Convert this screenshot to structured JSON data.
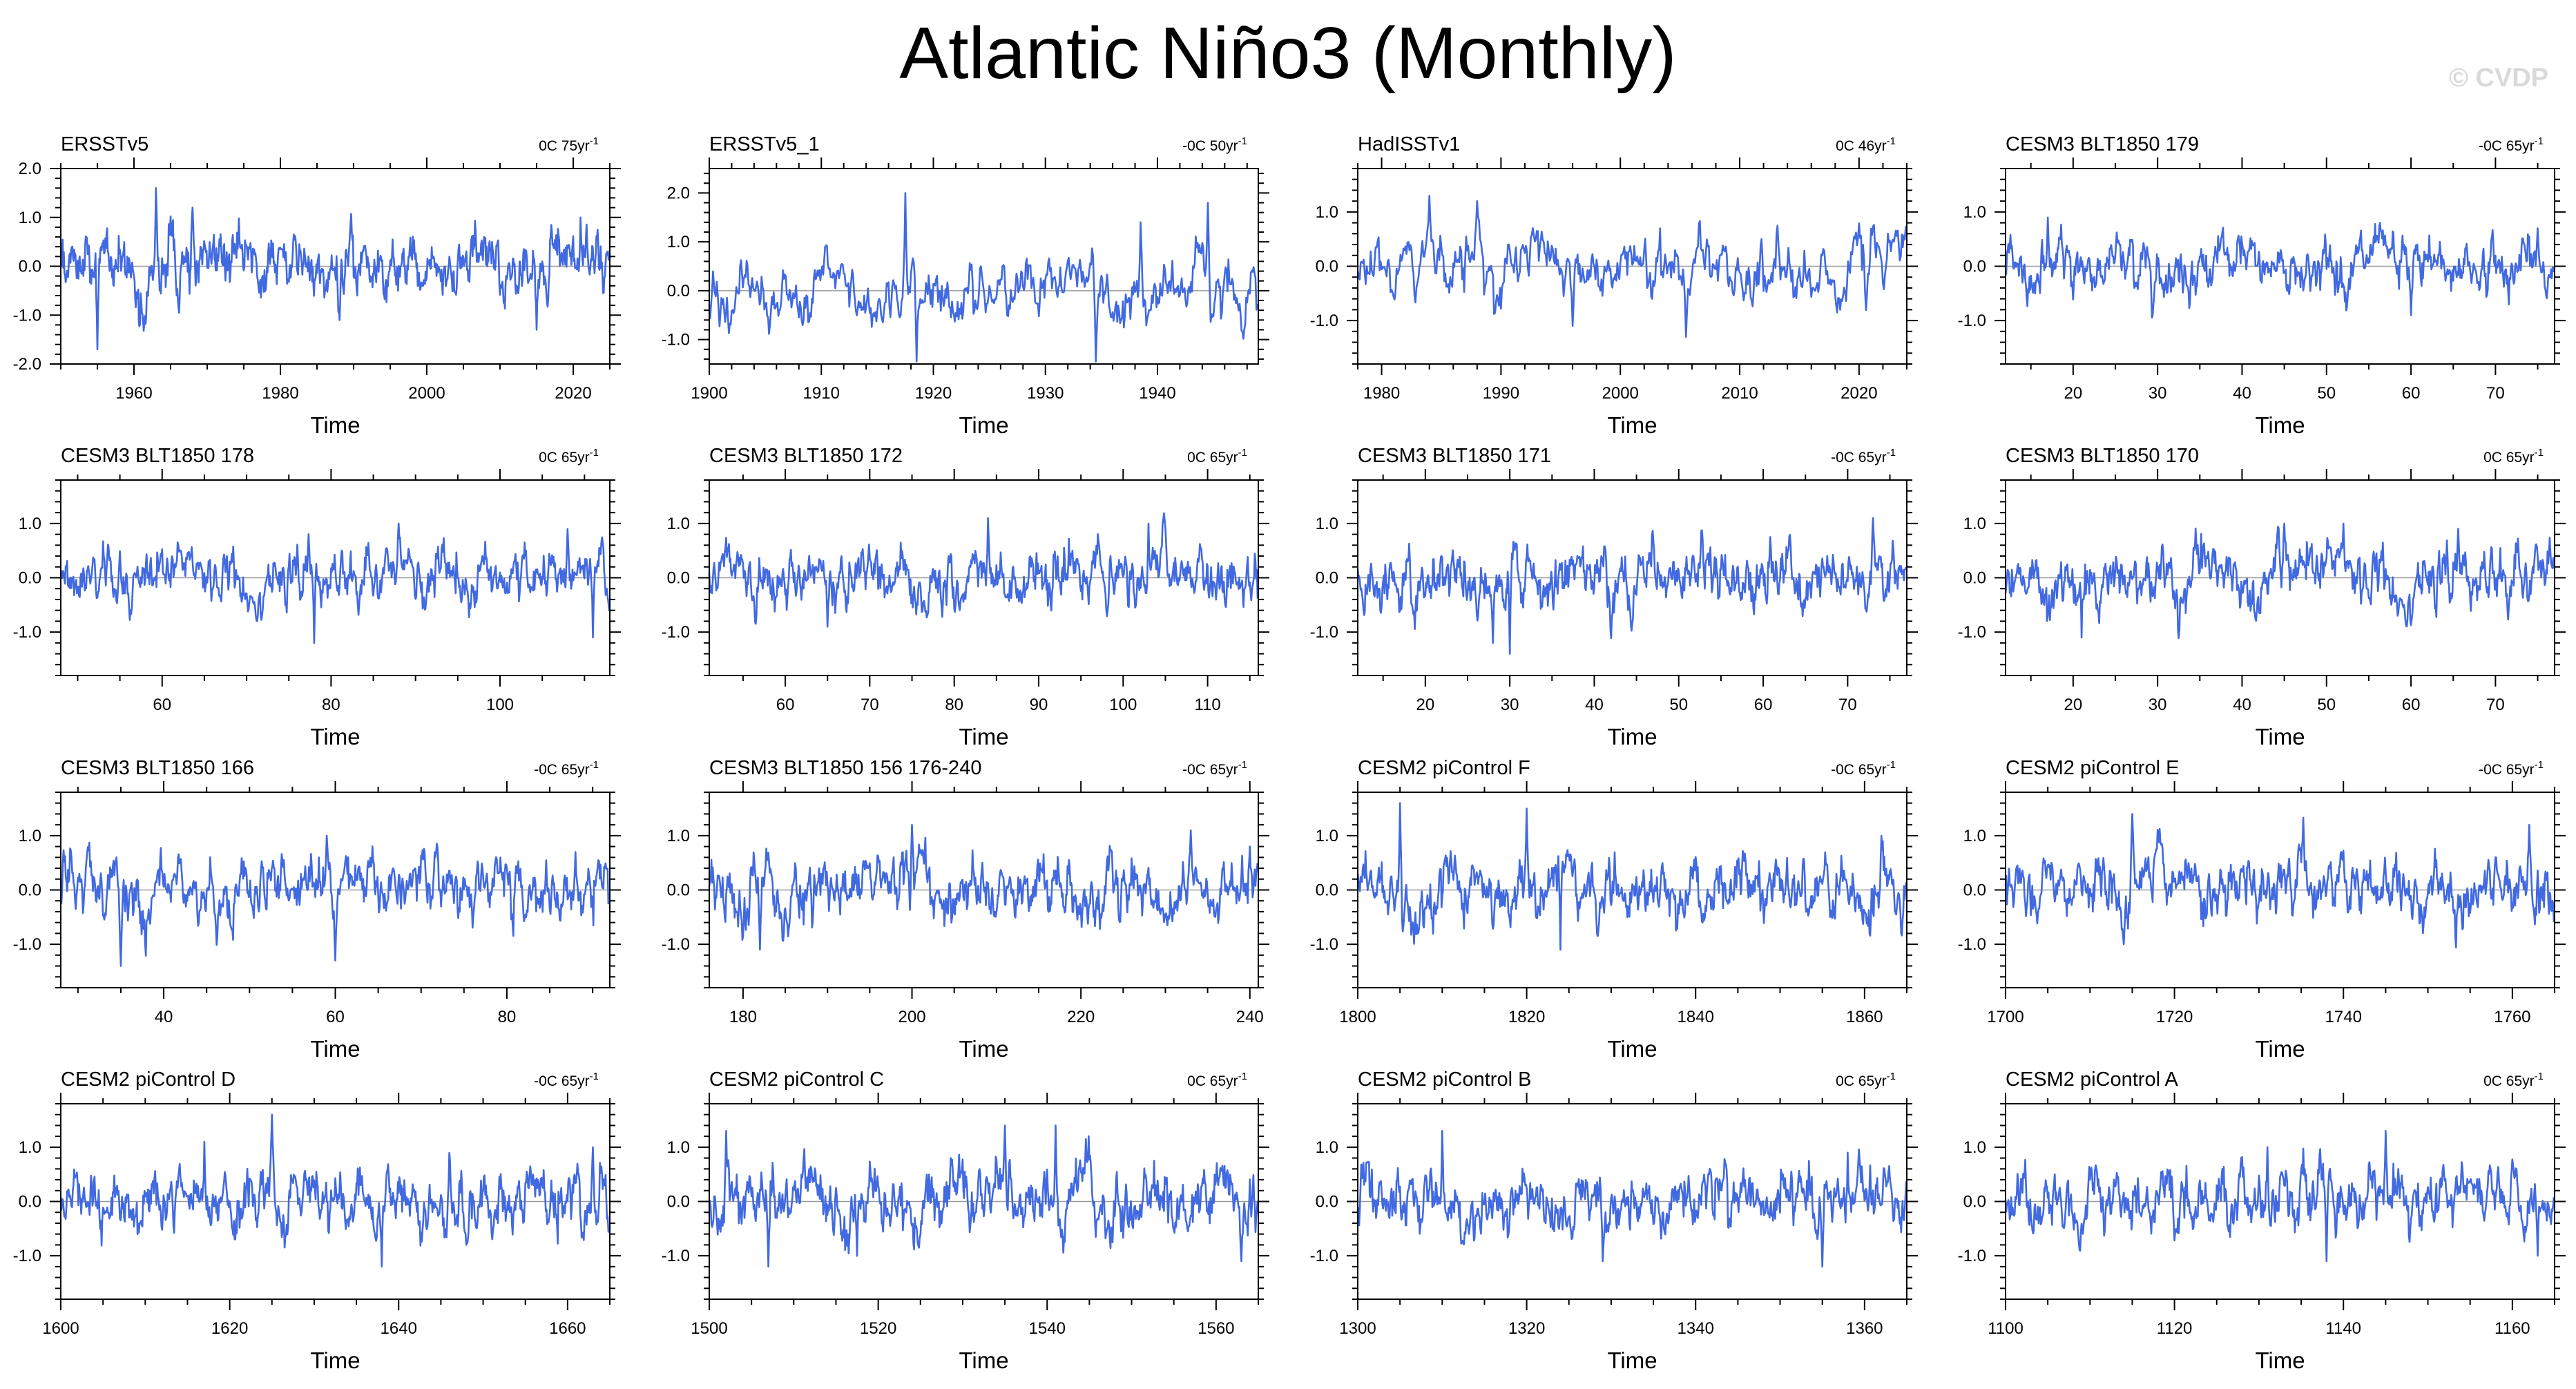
{
  "title": "Atlantic Niño3 (Monthly)",
  "watermark": "© CVDP",
  "colors": {
    "line": "#4169e1",
    "axis": "#000000",
    "zero": "#9a9a9a"
  },
  "chart_data": [
    {
      "type": "line",
      "title": "ERSSTv5",
      "trend": "0C 75yr",
      "trend_sup": "-1",
      "xlabel": "Time",
      "ylabel": "",
      "xlim": [
        1950,
        2025
      ],
      "ylim": [
        -2,
        2
      ],
      "xticks": [
        1960,
        1980,
        2000,
        2020
      ],
      "yticks": [
        -2.0,
        -1.0,
        0.0,
        1.0,
        2.0
      ],
      "ytick_labels": [
        "-2.0",
        "-1.0",
        "0.0",
        "1.0",
        "2.0"
      ],
      "amp": 0.5,
      "seed": 11,
      "spikes": [
        [
          1963,
          1.6
        ],
        [
          1955,
          -1.7
        ],
        [
          2015,
          -1.3
        ],
        [
          1968,
          1.2
        ],
        [
          2021,
          1.0
        ]
      ]
    },
    {
      "type": "line",
      "title": "ERSSTv5_1",
      "trend": "-0C 50yr",
      "trend_sup": "-1",
      "xlabel": "Time",
      "ylabel": "",
      "xlim": [
        1900,
        1949
      ],
      "ylim": [
        -1.5,
        2.5
      ],
      "xticks": [
        1900,
        1910,
        1920,
        1930,
        1940
      ],
      "yticks": [
        -1.0,
        0.0,
        1.0,
        2.0
      ],
      "ytick_labels": [
        "-1.0",
        "0.0",
        "1.0",
        "2.0"
      ],
      "amp": 0.5,
      "seed": 23,
      "spikes": [
        [
          1917.5,
          2.0
        ],
        [
          1918.5,
          -1.6
        ],
        [
          1944.5,
          1.8
        ],
        [
          1934.5,
          -1.6
        ],
        [
          1938.5,
          1.4
        ]
      ]
    },
    {
      "type": "line",
      "title": "HadISSTv1",
      "trend": "0C 46yr",
      "trend_sup": "-1",
      "xlabel": "Time",
      "ylabel": "",
      "xlim": [
        1978,
        2024
      ],
      "ylim": [
        -1.8,
        1.8
      ],
      "xticks": [
        1980,
        1990,
        2000,
        2010,
        2020
      ],
      "yticks": [
        -1.0,
        0.0,
        1.0
      ],
      "ytick_labels": [
        "-1.0",
        "0.0",
        "1.0"
      ],
      "amp": 0.45,
      "seed": 37,
      "spikes": [
        [
          1984,
          1.3
        ],
        [
          1996,
          -1.1
        ],
        [
          2005.5,
          -1.3
        ],
        [
          2024,
          1.1
        ],
        [
          1988,
          1.2
        ]
      ]
    },
    {
      "type": "line",
      "title": "CESM3 BLT1850 179",
      "trend": "-0C 65yr",
      "trend_sup": "-1",
      "xlabel": "Time",
      "ylabel": "",
      "xlim": [
        12,
        77
      ],
      "ylim": [
        -1.8,
        1.8
      ],
      "xticks": [
        20,
        30,
        40,
        50,
        60,
        70
      ],
      "yticks": [
        -1.0,
        0.0,
        1.0
      ],
      "ytick_labels": [
        "-1.0",
        "0.0",
        "1.0"
      ],
      "amp": 0.4,
      "seed": 41,
      "spikes": [
        [
          17,
          0.9
        ],
        [
          60,
          -0.9
        ],
        [
          75,
          0.7
        ]
      ]
    },
    {
      "type": "line",
      "title": "CESM3 BLT1850 178",
      "trend": "0C 65yr",
      "trend_sup": "-1",
      "xlabel": "Time",
      "ylabel": "",
      "xlim": [
        48,
        113
      ],
      "ylim": [
        -1.8,
        1.8
      ],
      "xticks": [
        60,
        80,
        100
      ],
      "yticks": [
        -1.0,
        0.0,
        1.0
      ],
      "ytick_labels": [
        "-1.0",
        "0.0",
        "1.0"
      ],
      "amp": 0.4,
      "seed": 53,
      "spikes": [
        [
          78,
          -1.2
        ],
        [
          88,
          1.0
        ],
        [
          111,
          -1.1
        ],
        [
          108,
          0.9
        ]
      ]
    },
    {
      "type": "line",
      "title": "CESM3 BLT1850 172",
      "trend": "0C 65yr",
      "trend_sup": "-1",
      "xlabel": "Time",
      "ylabel": "",
      "xlim": [
        51,
        116
      ],
      "ylim": [
        -1.8,
        1.8
      ],
      "xticks": [
        60,
        70,
        80,
        90,
        100,
        110
      ],
      "yticks": [
        -1.0,
        0.0,
        1.0
      ],
      "ytick_labels": [
        "-1.0",
        "0.0",
        "1.0"
      ],
      "amp": 0.45,
      "seed": 67,
      "spikes": [
        [
          84,
          1.1
        ],
        [
          65,
          -0.9
        ],
        [
          103,
          1.0
        ]
      ]
    },
    {
      "type": "line",
      "title": "CESM3 BLT1850 171",
      "trend": "-0C 65yr",
      "trend_sup": "-1",
      "xlabel": "Time",
      "ylabel": "",
      "xlim": [
        12,
        77
      ],
      "ylim": [
        -1.8,
        1.8
      ],
      "xticks": [
        20,
        30,
        40,
        50,
        60,
        70
      ],
      "yticks": [
        -1.0,
        0.0,
        1.0
      ],
      "ytick_labels": [
        "-1.0",
        "0.0",
        "1.0"
      ],
      "amp": 0.45,
      "seed": 71,
      "spikes": [
        [
          30,
          -1.4
        ],
        [
          28,
          -1.2
        ],
        [
          73,
          1.1
        ]
      ]
    },
    {
      "type": "line",
      "title": "CESM3 BLT1850 170",
      "trend": "0C 65yr",
      "trend_sup": "-1",
      "xlabel": "Time",
      "ylabel": "",
      "xlim": [
        12,
        77
      ],
      "ylim": [
        -1.8,
        1.8
      ],
      "xticks": [
        20,
        30,
        40,
        50,
        60,
        70
      ],
      "yticks": [
        -1.0,
        0.0,
        1.0
      ],
      "ytick_labels": [
        "-1.0",
        "0.0",
        "1.0"
      ],
      "amp": 0.45,
      "seed": 83,
      "spikes": [
        [
          45,
          1.0
        ],
        [
          21,
          -1.1
        ],
        [
          52,
          1.0
        ]
      ]
    },
    {
      "type": "line",
      "title": "CESM3 BLT1850 166",
      "trend": "-0C 65yr",
      "trend_sup": "-1",
      "xlabel": "Time",
      "ylabel": "",
      "xlim": [
        28,
        92
      ],
      "ylim": [
        -1.8,
        1.8
      ],
      "xticks": [
        40,
        60,
        80
      ],
      "yticks": [
        -1.0,
        0.0,
        1.0
      ],
      "ytick_labels": [
        "-1.0",
        "0.0",
        "1.0"
      ],
      "amp": 0.45,
      "seed": 97,
      "spikes": [
        [
          35,
          -1.4
        ],
        [
          59,
          1.0
        ],
        [
          60,
          -1.3
        ],
        [
          88,
          0.7
        ]
      ]
    },
    {
      "type": "line",
      "title": "CESM3 BLT1850 156 176-240",
      "trend": "-0C 65yr",
      "trend_sup": "-1",
      "xlabel": "Time",
      "ylabel": "",
      "xlim": [
        176,
        241
      ],
      "ylim": [
        -1.8,
        1.8
      ],
      "xticks": [
        180,
        200,
        220,
        240
      ],
      "yticks": [
        -1.0,
        0.0,
        1.0
      ],
      "ytick_labels": [
        "-1.0",
        "0.0",
        "1.0"
      ],
      "amp": 0.45,
      "seed": 101,
      "spikes": [
        [
          200,
          1.2
        ],
        [
          182,
          -1.1
        ],
        [
          233,
          1.1
        ],
        [
          240,
          0.8
        ]
      ]
    },
    {
      "type": "line",
      "title": "CESM2 piControl F",
      "trend": "-0C 65yr",
      "trend_sup": "-1",
      "xlabel": "Time",
      "ylabel": "",
      "xlim": [
        1800,
        1865
      ],
      "ylim": [
        -1.8,
        1.8
      ],
      "xticks": [
        1800,
        1820,
        1840,
        1860
      ],
      "yticks": [
        -1.0,
        0.0,
        1.0
      ],
      "ytick_labels": [
        "-1.0",
        "0.0",
        "1.0"
      ],
      "amp": 0.45,
      "seed": 113,
      "spikes": [
        [
          1805,
          1.6
        ],
        [
          1820,
          1.5
        ],
        [
          1824,
          -1.1
        ],
        [
          1862,
          1.0
        ]
      ]
    },
    {
      "type": "line",
      "title": "CESM2 piControl E",
      "trend": "-0C 65yr",
      "trend_sup": "-1",
      "xlabel": "Time",
      "ylabel": "",
      "xlim": [
        1700,
        1765
      ],
      "ylim": [
        -1.8,
        1.8
      ],
      "xticks": [
        1700,
        1720,
        1740,
        1760
      ],
      "yticks": [
        -1.0,
        0.0,
        1.0
      ],
      "ytick_labels": [
        "-1.0",
        "0.0",
        "1.0"
      ],
      "amp": 0.45,
      "seed": 127,
      "spikes": [
        [
          1715,
          1.4
        ],
        [
          1714,
          -1.0
        ],
        [
          1762,
          1.2
        ],
        [
          1765,
          -1.1
        ]
      ]
    },
    {
      "type": "line",
      "title": "CESM2 piControl D",
      "trend": "-0C 65yr",
      "trend_sup": "-1",
      "xlabel": "Time",
      "ylabel": "",
      "xlim": [
        1600,
        1665
      ],
      "ylim": [
        -1.8,
        1.8
      ],
      "xticks": [
        1600,
        1620,
        1640,
        1660
      ],
      "yticks": [
        -1.0,
        0.0,
        1.0
      ],
      "ytick_labels": [
        "-1.0",
        "0.0",
        "1.0"
      ],
      "amp": 0.45,
      "seed": 131,
      "spikes": [
        [
          1625,
          1.6
        ],
        [
          1638,
          -1.2
        ],
        [
          1617,
          1.1
        ],
        [
          1663,
          1.0
        ]
      ]
    },
    {
      "type": "line",
      "title": "CESM2 piControl C",
      "trend": "0C 65yr",
      "trend_sup": "-1",
      "xlabel": "Time",
      "ylabel": "",
      "xlim": [
        1500,
        1565
      ],
      "ylim": [
        -1.8,
        1.8
      ],
      "xticks": [
        1500,
        1520,
        1540,
        1560
      ],
      "yticks": [
        -1.0,
        0.0,
        1.0
      ],
      "ytick_labels": [
        "-1.0",
        "0.0",
        "1.0"
      ],
      "amp": 0.5,
      "seed": 139,
      "spikes": [
        [
          1502,
          1.3
        ],
        [
          1507,
          -1.2
        ],
        [
          1535,
          1.4
        ],
        [
          1541,
          1.4
        ],
        [
          1563,
          -1.1
        ]
      ]
    },
    {
      "type": "line",
      "title": "CESM2 piControl B",
      "trend": "0C 65yr",
      "trend_sup": "-1",
      "xlabel": "Time",
      "ylabel": "",
      "xlim": [
        1300,
        1365
      ],
      "ylim": [
        -1.8,
        1.8
      ],
      "xticks": [
        1300,
        1320,
        1340,
        1360
      ],
      "yticks": [
        -1.0,
        0.0,
        1.0
      ],
      "ytick_labels": [
        "-1.0",
        "0.0",
        "1.0"
      ],
      "amp": 0.45,
      "seed": 149,
      "spikes": [
        [
          1310,
          1.3
        ],
        [
          1329,
          -1.1
        ],
        [
          1355,
          -1.2
        ],
        [
          1358,
          0.9
        ]
      ]
    },
    {
      "type": "line",
      "title": "CESM2 piControl A",
      "trend": "0C 65yr",
      "trend_sup": "-1",
      "xlabel": "Time",
      "ylabel": "",
      "xlim": [
        1100,
        1165
      ],
      "ylim": [
        -1.8,
        1.8
      ],
      "xticks": [
        1100,
        1120,
        1140,
        1160
      ],
      "yticks": [
        -1.0,
        0.0,
        1.0
      ],
      "ytick_labels": [
        "-1.0",
        "0.0",
        "1.0"
      ],
      "amp": 0.45,
      "seed": 157,
      "spikes": [
        [
          1145,
          1.3
        ],
        [
          1138,
          -1.1
        ],
        [
          1131,
          1.0
        ],
        [
          1163,
          -1.0
        ]
      ]
    }
  ]
}
